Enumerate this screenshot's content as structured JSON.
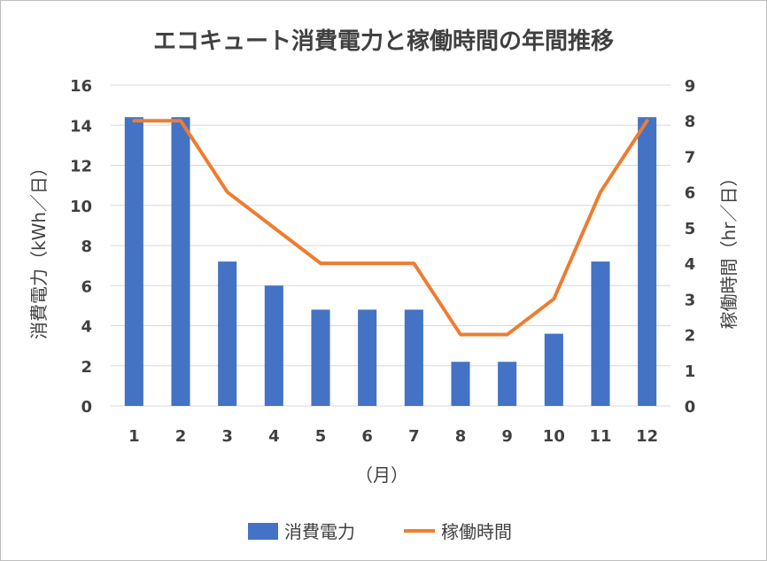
{
  "chart_data": {
    "type": "bar",
    "title": "エコキュート消費電力と稼働時間の年間推移",
    "categories": [
      "1",
      "2",
      "3",
      "4",
      "5",
      "6",
      "7",
      "8",
      "9",
      "10",
      "11",
      "12"
    ],
    "xlabel": "（月）",
    "ylabel": "消費電力（kWh／日）",
    "y2label": "稼働時間（hr／日）",
    "ylim": [
      0,
      16
    ],
    "y2lim": [
      0,
      9
    ],
    "yticks": [
      "0",
      "2",
      "4",
      "6",
      "8",
      "10",
      "12",
      "14",
      "16"
    ],
    "y2ticks": [
      "0",
      "1",
      "2",
      "3",
      "4",
      "5",
      "6",
      "7",
      "8",
      "9"
    ],
    "grid": true,
    "legend_position": "bottom",
    "series": [
      {
        "name": "消費電力",
        "type": "bar",
        "axis": "left",
        "color": "#4472c4",
        "values": [
          14.4,
          14.4,
          7.2,
          6.0,
          4.8,
          4.8,
          4.8,
          2.2,
          2.2,
          3.6,
          7.2,
          14.4
        ]
      },
      {
        "name": "稼働時間",
        "type": "line",
        "axis": "right",
        "color": "#ed7d31",
        "values": [
          8,
          8,
          6,
          5,
          4,
          4,
          4,
          2,
          2,
          3,
          6,
          8
        ]
      }
    ]
  }
}
